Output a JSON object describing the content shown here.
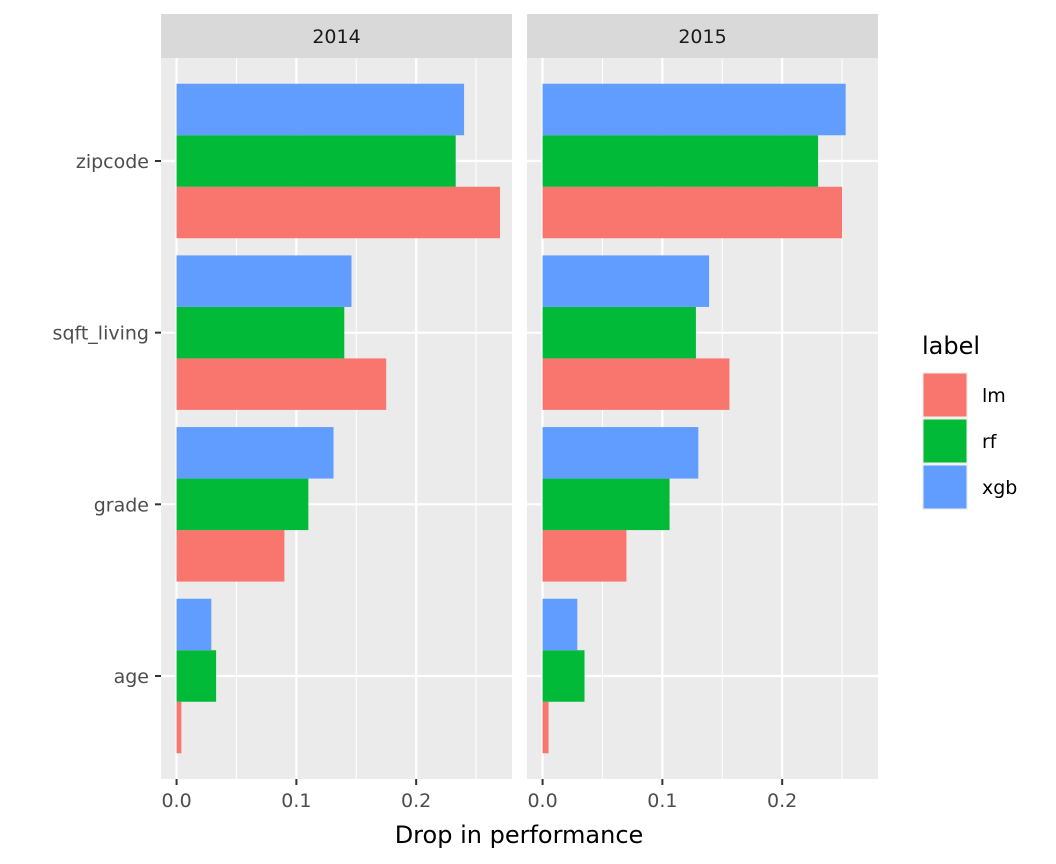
{
  "chart_data": {
    "type": "bar",
    "orientation": "horizontal",
    "xlabel": "Drop in performance",
    "ylabel": "",
    "xlim": [
      -0.013,
      0.28
    ],
    "x_ticks": [
      "0.0",
      "0.1",
      "0.2"
    ],
    "x_tick_values": [
      0,
      0.1,
      0.2
    ],
    "categories": [
      "age",
      "grade",
      "sqft_living",
      "zipcode"
    ],
    "legend": {
      "title": "label",
      "placement": "right",
      "entries": [
        {
          "name": "lm",
          "color": "#F8766D"
        },
        {
          "name": "rf",
          "color": "#00BA38"
        },
        {
          "name": "xgb",
          "color": "#619CFF"
        }
      ]
    },
    "grid": true,
    "panels": [
      {
        "title": "2014",
        "series": [
          {
            "name": "lm",
            "values": [
              0.004,
              0.09,
              0.175,
              0.27
            ]
          },
          {
            "name": "rf",
            "values": [
              0.033,
              0.11,
              0.14,
              0.233
            ]
          },
          {
            "name": "xgb",
            "values": [
              0.029,
              0.131,
              0.146,
              0.24
            ]
          }
        ]
      },
      {
        "title": "2015",
        "series": [
          {
            "name": "lm",
            "values": [
              0.005,
              0.07,
              0.156,
              0.25
            ]
          },
          {
            "name": "rf",
            "values": [
              0.035,
              0.106,
              0.128,
              0.23
            ]
          },
          {
            "name": "xgb",
            "values": [
              0.029,
              0.13,
              0.139,
              0.253
            ]
          }
        ]
      }
    ]
  }
}
